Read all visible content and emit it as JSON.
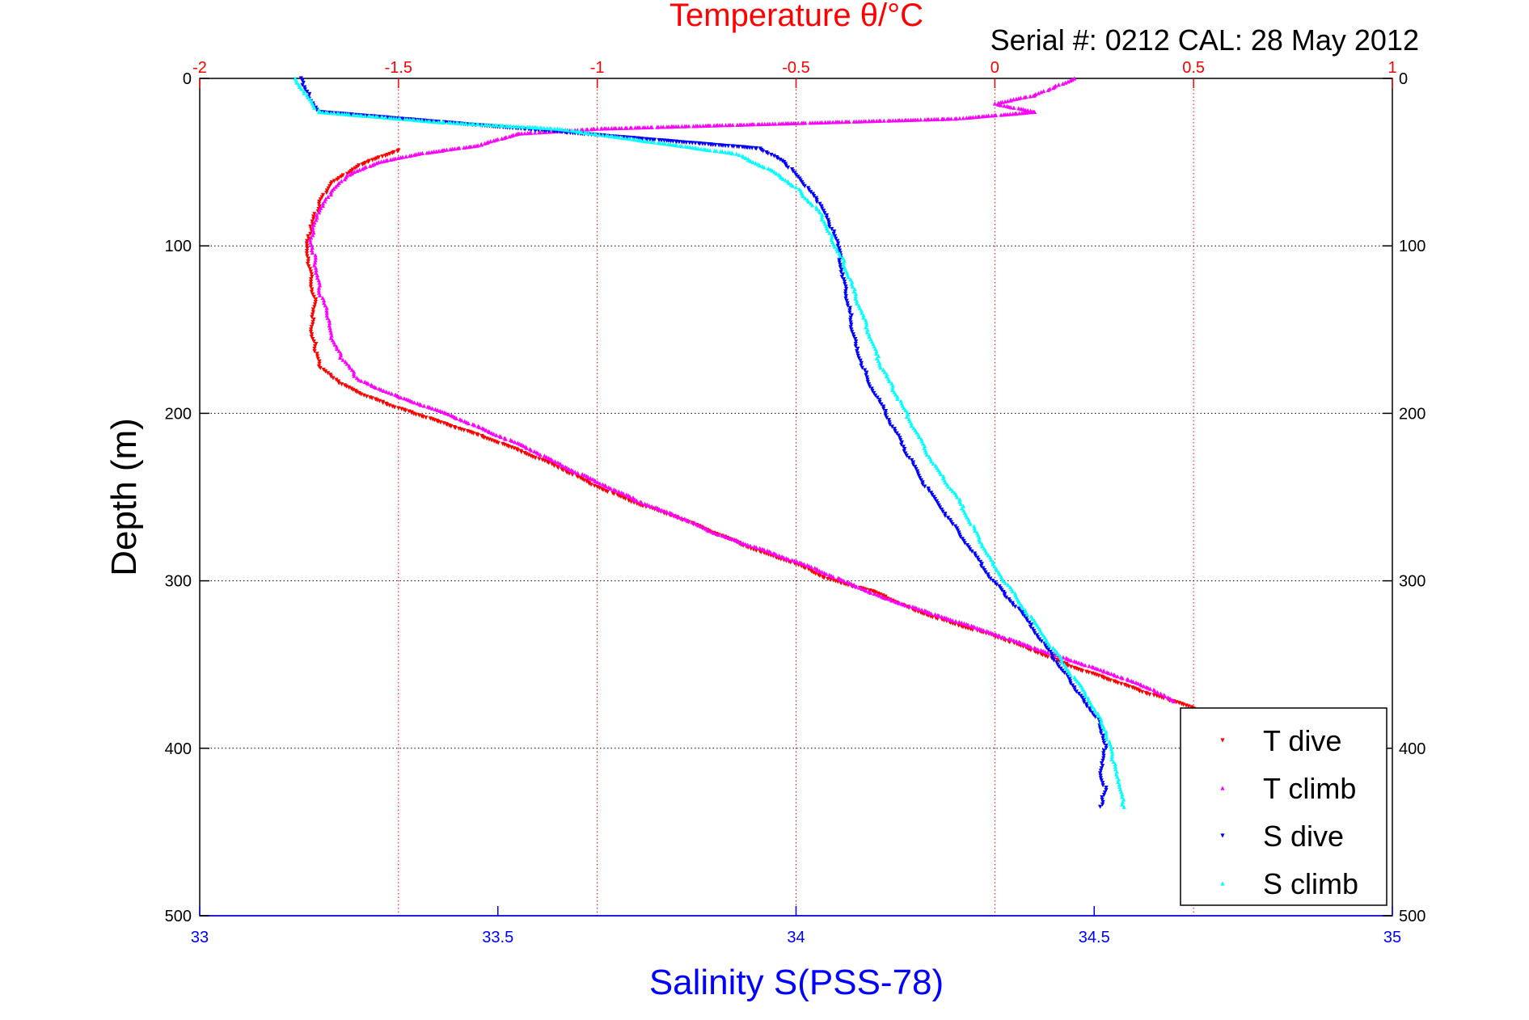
{
  "chart_data": {
    "type": "scatter",
    "title": "Temperature θ/°C",
    "subtitle": "Serial #: 0212  CAL: 28 May 2012",
    "xlabel": "Salinity S(PSS-78)",
    "ylabel": "Depth (m)",
    "x_top": {
      "label": "Temperature θ/°C",
      "range": [
        -2,
        1
      ],
      "ticks": [
        "-2",
        "-1.5",
        "-1",
        "-0.5",
        "0",
        "0.5",
        "1"
      ],
      "color": "#ff0000"
    },
    "x_bottom": {
      "label": "Salinity S(PSS-78)",
      "range": [
        33,
        35
      ],
      "ticks": [
        "33",
        "33.5",
        "34",
        "34.5",
        "35"
      ],
      "color": "#0000ff"
    },
    "y": {
      "range": [
        0,
        500
      ],
      "inverted": true,
      "ticks": [
        "0",
        "100",
        "200",
        "300",
        "400",
        "500"
      ]
    },
    "grid": true,
    "legend_position": "bottom-right",
    "series": [
      {
        "name": "T dive",
        "axis": "temperature",
        "color": "#ff0000",
        "points": [
          [
            -1.5,
            43
          ],
          [
            -1.6,
            52
          ],
          [
            -1.67,
            63
          ],
          [
            -1.7,
            75
          ],
          [
            -1.72,
            90
          ],
          [
            -1.73,
            100
          ],
          [
            -1.72,
            120
          ],
          [
            -1.71,
            135
          ],
          [
            -1.72,
            150
          ],
          [
            -1.71,
            160
          ],
          [
            -1.7,
            172
          ],
          [
            -1.65,
            182
          ],
          [
            -1.58,
            190
          ],
          [
            -1.5,
            197
          ],
          [
            -1.4,
            205
          ],
          [
            -1.3,
            213
          ],
          [
            -1.2,
            222
          ],
          [
            -1.1,
            232
          ],
          [
            -1.0,
            244
          ],
          [
            -0.9,
            254
          ],
          [
            -0.8,
            262
          ],
          [
            -0.7,
            272
          ],
          [
            -0.6,
            282
          ],
          [
            -0.5,
            290
          ],
          [
            -0.42,
            299
          ],
          [
            -0.3,
            307
          ],
          [
            -0.2,
            318
          ],
          [
            -0.1,
            326
          ],
          [
            0.0,
            333
          ],
          [
            0.1,
            342
          ],
          [
            0.2,
            352
          ],
          [
            0.3,
            360
          ],
          [
            0.38,
            367
          ],
          [
            0.45,
            372
          ],
          [
            0.52,
            378
          ],
          [
            0.57,
            383
          ]
        ]
      },
      {
        "name": "T climb",
        "axis": "temperature",
        "color": "#ff00ff",
        "points": [
          [
            0.2,
            0
          ],
          [
            0.15,
            5
          ],
          [
            0.1,
            10
          ],
          [
            0.0,
            15
          ],
          [
            0.1,
            20
          ],
          [
            -0.1,
            24
          ],
          [
            -0.4,
            26
          ],
          [
            -0.7,
            28
          ],
          [
            -1.0,
            30
          ],
          [
            -1.2,
            33
          ],
          [
            -1.3,
            40
          ],
          [
            -1.45,
            45
          ],
          [
            -1.55,
            50
          ],
          [
            -1.63,
            58
          ],
          [
            -1.67,
            68
          ],
          [
            -1.7,
            80
          ],
          [
            -1.72,
            95
          ],
          [
            -1.71,
            110
          ],
          [
            -1.7,
            125
          ],
          [
            -1.68,
            140
          ],
          [
            -1.67,
            155
          ],
          [
            -1.64,
            168
          ],
          [
            -1.6,
            180
          ],
          [
            -1.5,
            190
          ],
          [
            -1.38,
            200
          ],
          [
            -1.28,
            210
          ],
          [
            -1.18,
            220
          ],
          [
            -1.08,
            232
          ],
          [
            -0.98,
            243
          ],
          [
            -0.88,
            254
          ],
          [
            -0.78,
            263
          ],
          [
            -0.7,
            272
          ],
          [
            -0.6,
            280
          ],
          [
            -0.48,
            290
          ],
          [
            -0.38,
            300
          ],
          [
            -0.28,
            310
          ],
          [
            -0.15,
            320
          ],
          [
            -0.02,
            330
          ],
          [
            0.1,
            340
          ],
          [
            0.2,
            348
          ],
          [
            0.3,
            356
          ],
          [
            0.4,
            365
          ],
          [
            0.45,
            372
          ]
        ]
      },
      {
        "name": "S dive",
        "axis": "salinity",
        "color": "#0000ff",
        "points": [
          [
            33.17,
            0
          ],
          [
            33.18,
            8
          ],
          [
            33.19,
            15
          ],
          [
            33.2,
            20
          ],
          [
            33.94,
            42
          ],
          [
            33.98,
            50
          ],
          [
            34.01,
            62
          ],
          [
            34.04,
            75
          ],
          [
            34.06,
            90
          ],
          [
            34.07,
            100
          ],
          [
            34.08,
            120
          ],
          [
            34.09,
            140
          ],
          [
            34.1,
            160
          ],
          [
            34.12,
            180
          ],
          [
            34.15,
            200
          ],
          [
            34.18,
            220
          ],
          [
            34.21,
            240
          ],
          [
            34.25,
            260
          ],
          [
            34.29,
            280
          ],
          [
            34.33,
            300
          ],
          [
            34.38,
            320
          ],
          [
            34.42,
            340
          ],
          [
            34.45,
            355
          ],
          [
            34.48,
            370
          ],
          [
            34.51,
            385
          ],
          [
            34.52,
            400
          ],
          [
            34.51,
            415
          ],
          [
            34.52,
            425
          ],
          [
            34.51,
            435
          ]
        ]
      },
      {
        "name": "S climb",
        "axis": "salinity",
        "color": "#00ffff",
        "points": [
          [
            33.16,
            0
          ],
          [
            33.18,
            10
          ],
          [
            33.2,
            20
          ],
          [
            33.4,
            26
          ],
          [
            33.6,
            30
          ],
          [
            33.7,
            35
          ],
          [
            33.8,
            40
          ],
          [
            33.9,
            45
          ],
          [
            33.96,
            55
          ],
          [
            34.0,
            65
          ],
          [
            34.04,
            80
          ],
          [
            34.06,
            95
          ],
          [
            34.08,
            110
          ],
          [
            34.1,
            130
          ],
          [
            34.12,
            150
          ],
          [
            34.14,
            170
          ],
          [
            34.17,
            190
          ],
          [
            34.2,
            210
          ],
          [
            34.23,
            230
          ],
          [
            34.27,
            250
          ],
          [
            34.3,
            270
          ],
          [
            34.33,
            290
          ],
          [
            34.37,
            310
          ],
          [
            34.41,
            330
          ],
          [
            34.45,
            350
          ],
          [
            34.49,
            370
          ],
          [
            34.52,
            390
          ],
          [
            34.53,
            405
          ],
          [
            34.54,
            420
          ],
          [
            34.55,
            435
          ]
        ]
      }
    ]
  }
}
